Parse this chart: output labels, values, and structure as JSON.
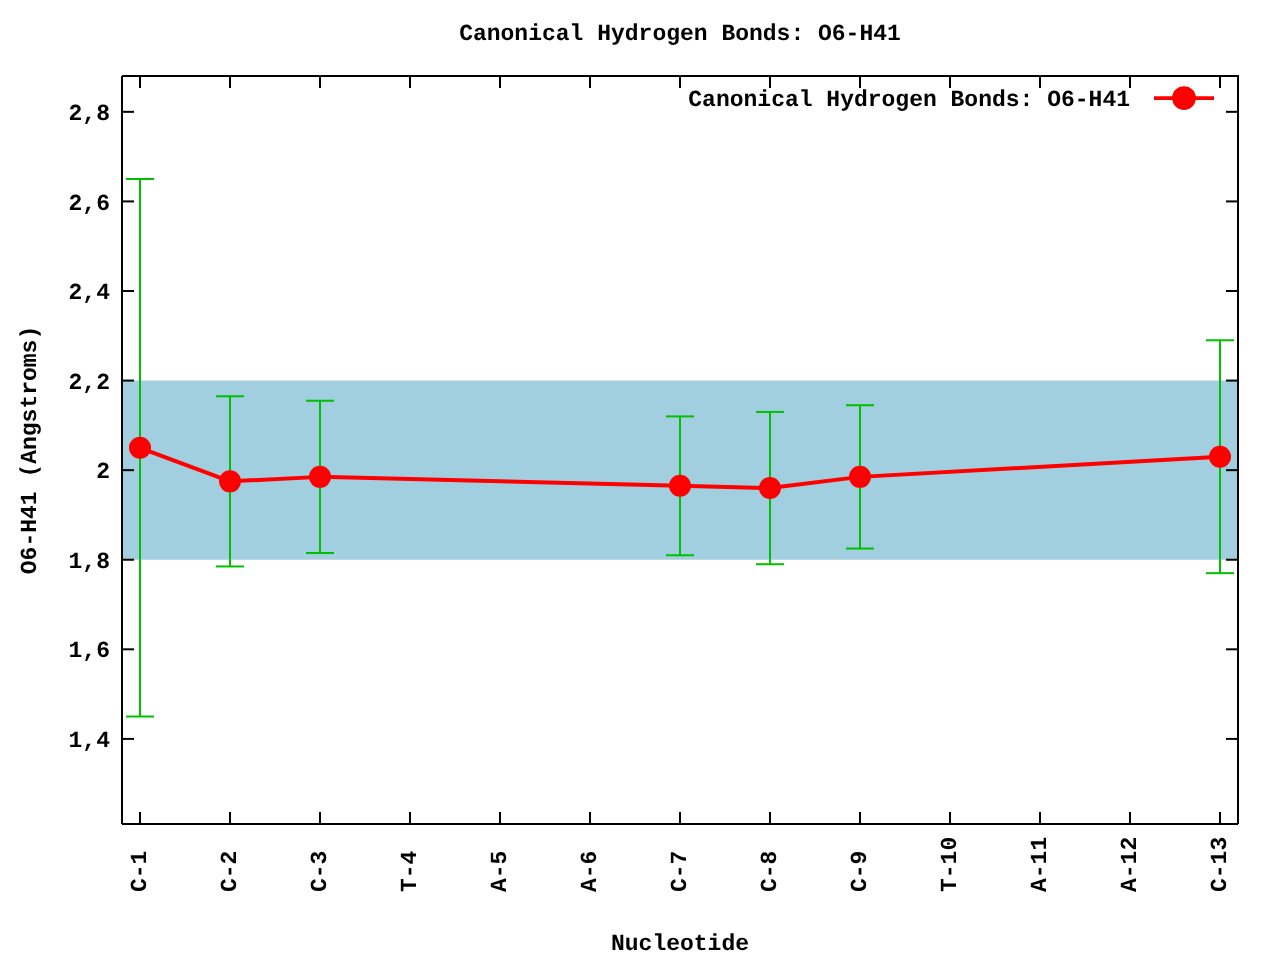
{
  "chart_data": {
    "type": "line",
    "title": "Canonical Hydrogen Bonds: O6-H41",
    "xlabel": "Nucleotide",
    "ylabel": "O6-H41 (Angstroms)",
    "categories": [
      "C-1",
      "C-2",
      "C-3",
      "T-4",
      "A-5",
      "A-6",
      "C-7",
      "C-8",
      "C-9",
      "T-10",
      "A-11",
      "A-12",
      "C-13"
    ],
    "series": [
      {
        "name": "Canonical Hydrogen Bonds: O6-H41",
        "color": "#ff0000",
        "values": [
          2.05,
          1.975,
          1.985,
          null,
          null,
          null,
          1.965,
          1.96,
          1.985,
          null,
          null,
          null,
          2.03
        ],
        "errors": [
          0.6,
          0.19,
          0.17,
          null,
          null,
          null,
          0.155,
          0.17,
          0.16,
          null,
          null,
          null,
          0.26
        ]
      }
    ],
    "ylim": [
      1.21,
      2.88
    ],
    "yticks": [
      {
        "value": 1.4,
        "label": "1,4"
      },
      {
        "value": 1.6,
        "label": "1,6"
      },
      {
        "value": 1.8,
        "label": "1,8"
      },
      2,
      {
        "value": 2.2,
        "label": "2,2"
      },
      {
        "value": 2.4,
        "label": "2,4"
      },
      {
        "value": 2.6,
        "label": "2,6"
      },
      {
        "value": 2.8,
        "label": "2,8"
      }
    ],
    "bands": [
      {
        "axis": "y",
        "from": 1.8,
        "to": 2.2,
        "color": "#a2cfdf"
      }
    ],
    "legend": "top right",
    "marker": "circle",
    "line_style": "solid"
  }
}
